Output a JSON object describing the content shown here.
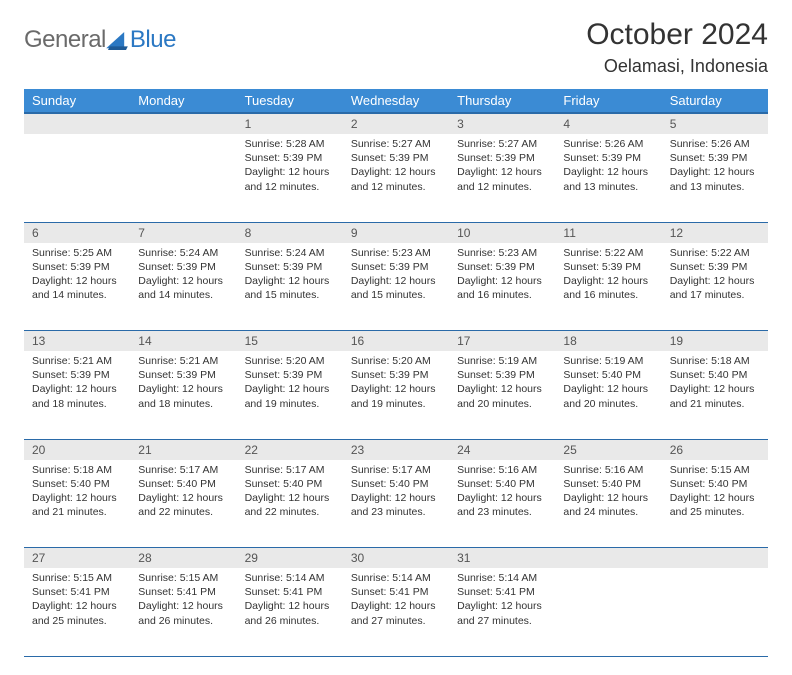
{
  "branding": {
    "word1": "General",
    "word2": "Blue",
    "colors": {
      "word1": "#6a6a6a",
      "word2": "#2b78c3",
      "sail": "#2b78c3"
    }
  },
  "title": "October 2024",
  "location": "Oelamasi, Indonesia",
  "theme": {
    "header_bg": "#3b8bd4",
    "header_text": "#ffffff",
    "daynum_bg": "#e9e9e9",
    "rule_color": "#2a6aa8",
    "body_text": "#333333",
    "page_bg": "#ffffff"
  },
  "day_headers": [
    "Sunday",
    "Monday",
    "Tuesday",
    "Wednesday",
    "Thursday",
    "Friday",
    "Saturday"
  ],
  "weeks": [
    [
      null,
      null,
      {
        "n": "1",
        "sr": "5:28 AM",
        "ss": "5:39 PM",
        "dl": "12 hours and 12 minutes."
      },
      {
        "n": "2",
        "sr": "5:27 AM",
        "ss": "5:39 PM",
        "dl": "12 hours and 12 minutes."
      },
      {
        "n": "3",
        "sr": "5:27 AM",
        "ss": "5:39 PM",
        "dl": "12 hours and 12 minutes."
      },
      {
        "n": "4",
        "sr": "5:26 AM",
        "ss": "5:39 PM",
        "dl": "12 hours and 13 minutes."
      },
      {
        "n": "5",
        "sr": "5:26 AM",
        "ss": "5:39 PM",
        "dl": "12 hours and 13 minutes."
      }
    ],
    [
      {
        "n": "6",
        "sr": "5:25 AM",
        "ss": "5:39 PM",
        "dl": "12 hours and 14 minutes."
      },
      {
        "n": "7",
        "sr": "5:24 AM",
        "ss": "5:39 PM",
        "dl": "12 hours and 14 minutes."
      },
      {
        "n": "8",
        "sr": "5:24 AM",
        "ss": "5:39 PM",
        "dl": "12 hours and 15 minutes."
      },
      {
        "n": "9",
        "sr": "5:23 AM",
        "ss": "5:39 PM",
        "dl": "12 hours and 15 minutes."
      },
      {
        "n": "10",
        "sr": "5:23 AM",
        "ss": "5:39 PM",
        "dl": "12 hours and 16 minutes."
      },
      {
        "n": "11",
        "sr": "5:22 AM",
        "ss": "5:39 PM",
        "dl": "12 hours and 16 minutes."
      },
      {
        "n": "12",
        "sr": "5:22 AM",
        "ss": "5:39 PM",
        "dl": "12 hours and 17 minutes."
      }
    ],
    [
      {
        "n": "13",
        "sr": "5:21 AM",
        "ss": "5:39 PM",
        "dl": "12 hours and 18 minutes."
      },
      {
        "n": "14",
        "sr": "5:21 AM",
        "ss": "5:39 PM",
        "dl": "12 hours and 18 minutes."
      },
      {
        "n": "15",
        "sr": "5:20 AM",
        "ss": "5:39 PM",
        "dl": "12 hours and 19 minutes."
      },
      {
        "n": "16",
        "sr": "5:20 AM",
        "ss": "5:39 PM",
        "dl": "12 hours and 19 minutes."
      },
      {
        "n": "17",
        "sr": "5:19 AM",
        "ss": "5:39 PM",
        "dl": "12 hours and 20 minutes."
      },
      {
        "n": "18",
        "sr": "5:19 AM",
        "ss": "5:40 PM",
        "dl": "12 hours and 20 minutes."
      },
      {
        "n": "19",
        "sr": "5:18 AM",
        "ss": "5:40 PM",
        "dl": "12 hours and 21 minutes."
      }
    ],
    [
      {
        "n": "20",
        "sr": "5:18 AM",
        "ss": "5:40 PM",
        "dl": "12 hours and 21 minutes."
      },
      {
        "n": "21",
        "sr": "5:17 AM",
        "ss": "5:40 PM",
        "dl": "12 hours and 22 minutes."
      },
      {
        "n": "22",
        "sr": "5:17 AM",
        "ss": "5:40 PM",
        "dl": "12 hours and 22 minutes."
      },
      {
        "n": "23",
        "sr": "5:17 AM",
        "ss": "5:40 PM",
        "dl": "12 hours and 23 minutes."
      },
      {
        "n": "24",
        "sr": "5:16 AM",
        "ss": "5:40 PM",
        "dl": "12 hours and 23 minutes."
      },
      {
        "n": "25",
        "sr": "5:16 AM",
        "ss": "5:40 PM",
        "dl": "12 hours and 24 minutes."
      },
      {
        "n": "26",
        "sr": "5:15 AM",
        "ss": "5:40 PM",
        "dl": "12 hours and 25 minutes."
      }
    ],
    [
      {
        "n": "27",
        "sr": "5:15 AM",
        "ss": "5:41 PM",
        "dl": "12 hours and 25 minutes."
      },
      {
        "n": "28",
        "sr": "5:15 AM",
        "ss": "5:41 PM",
        "dl": "12 hours and 26 minutes."
      },
      {
        "n": "29",
        "sr": "5:14 AM",
        "ss": "5:41 PM",
        "dl": "12 hours and 26 minutes."
      },
      {
        "n": "30",
        "sr": "5:14 AM",
        "ss": "5:41 PM",
        "dl": "12 hours and 27 minutes."
      },
      {
        "n": "31",
        "sr": "5:14 AM",
        "ss": "5:41 PM",
        "dl": "12 hours and 27 minutes."
      },
      null,
      null
    ]
  ],
  "labels": {
    "sunrise": "Sunrise:",
    "sunset": "Sunset:",
    "daylight": "Daylight:"
  }
}
